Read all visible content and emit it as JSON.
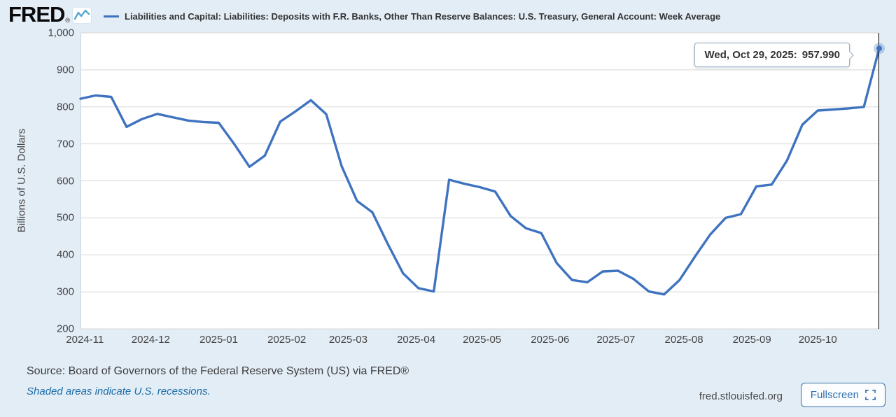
{
  "logo": {
    "text": "FRED",
    "registered": "®"
  },
  "tooltip": {
    "date_label": "Wed, Oct 29, 2025:",
    "value_label": "957.990"
  },
  "footer": {
    "source": "Source: Board of Governors of the Federal Reserve System (US) via FRED®",
    "recessions_note": "Shaded areas indicate U.S. recessions.",
    "site": "fred.stlouisfed.org",
    "fullscreen_label": "Fullscreen"
  },
  "colors": {
    "line": "#3f73c0",
    "page_background": "#e3edf6",
    "plot_background": "#ffffff",
    "gridline": "#d8d8d8",
    "axis_text": "#444444",
    "link": "#1a6ca8",
    "crosshair": "#000000"
  },
  "chart_data": {
    "type": "line",
    "title": "Liabilities and Capital: Liabilities: Deposits with F.R. Banks, Other Than Reserve Balances: U.S. Treasury, General Account: Week Average",
    "ylabel": "Billions of U.S. Dollars",
    "ylim": [
      200,
      1000
    ],
    "y_tick_step": 100,
    "grid": "horizontal",
    "legend_position": "top",
    "x_tick_labels": [
      "2024-11",
      "2024-12",
      "2025-01",
      "2025-02",
      "2025-03",
      "2025-04",
      "2025-05",
      "2025-06",
      "2025-07",
      "2025-08",
      "2025-09",
      "2025-10"
    ],
    "series": [
      {
        "name": "Liabilities and Capital: Liabilities: Deposits with F.R. Banks, Other Than Reserve Balances: U.S. Treasury, General Account: Week Average",
        "color": "#3f73c0",
        "dates": [
          "2024-10-30",
          "2024-11-06",
          "2024-11-13",
          "2024-11-20",
          "2024-11-27",
          "2024-12-04",
          "2024-12-11",
          "2024-12-18",
          "2024-12-25",
          "2025-01-01",
          "2025-01-08",
          "2025-01-15",
          "2025-01-22",
          "2025-01-29",
          "2025-02-05",
          "2025-02-12",
          "2025-02-19",
          "2025-02-26",
          "2025-03-05",
          "2025-03-12",
          "2025-03-19",
          "2025-03-26",
          "2025-04-02",
          "2025-04-09",
          "2025-04-16",
          "2025-04-23",
          "2025-04-30",
          "2025-05-07",
          "2025-05-14",
          "2025-05-21",
          "2025-05-28",
          "2025-06-04",
          "2025-06-11",
          "2025-06-18",
          "2025-06-25",
          "2025-07-02",
          "2025-07-09",
          "2025-07-16",
          "2025-07-23",
          "2025-07-30",
          "2025-08-06",
          "2025-08-13",
          "2025-08-20",
          "2025-08-27",
          "2025-09-03",
          "2025-09-10",
          "2025-09-17",
          "2025-09-24",
          "2025-10-01",
          "2025-10-08",
          "2025-10-15",
          "2025-10-22",
          "2025-10-29"
        ],
        "values": [
          822,
          831,
          827,
          746,
          767,
          781,
          772,
          763,
          759,
          757,
          700,
          638,
          668,
          760,
          788,
          818,
          780,
          640,
          546,
          515,
          430,
          350,
          310,
          301,
          603,
          592,
          583,
          571,
          505,
          472,
          459,
          378,
          332,
          326,
          355,
          357,
          335,
          301,
          293,
          332,
          395,
          455,
          500,
          510,
          585,
          590,
          655,
          752,
          790,
          793,
          796,
          800,
          957.99
        ]
      }
    ],
    "highlight_point": {
      "date": "2025-10-29",
      "display_date": "Wed, Oct 29, 2025",
      "value": 957.99,
      "display_value": "957.990"
    }
  }
}
